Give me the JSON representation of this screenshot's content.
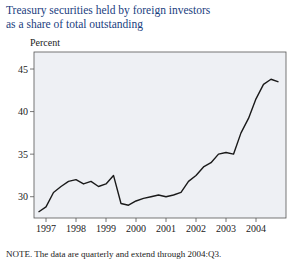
{
  "chart_data": {
    "type": "line",
    "title": "Treasury securities held by foreign investors",
    "subtitle": "as a share of total outstanding",
    "y_label": "Percent",
    "annotations": [
      "NOTE.  The data are quarterly and extend through 2004:Q3."
    ],
    "color": "#1a1a1a",
    "grid": false,
    "xlim": [
      1996.6,
      2005.0
    ],
    "xticks": [
      1997,
      1998,
      1999,
      2000,
      2001,
      2002,
      2003,
      2004
    ],
    "ylim": [
      27.5,
      47.0
    ],
    "yticks": [
      30,
      35,
      40,
      45
    ],
    "x": [
      1996.75,
      1997.0,
      1997.25,
      1997.5,
      1997.75,
      1998.0,
      1998.25,
      1998.5,
      1998.75,
      1999.0,
      1999.25,
      1999.5,
      1999.75,
      2000.0,
      2000.25,
      2000.5,
      2000.75,
      2001.0,
      2001.25,
      2001.5,
      2001.75,
      2002.0,
      2002.25,
      2002.5,
      2002.75,
      2003.0,
      2003.25,
      2003.5,
      2003.75,
      2004.0,
      2004.25,
      2004.5,
      2004.75
    ],
    "values": [
      28.2,
      28.8,
      30.5,
      31.2,
      31.8,
      32.0,
      31.5,
      31.8,
      31.2,
      31.5,
      32.5,
      29.2,
      29.0,
      29.5,
      29.8,
      30.0,
      30.2,
      30.0,
      30.2,
      30.5,
      31.8,
      32.5,
      33.5,
      34.0,
      35.0,
      35.2,
      35.0,
      37.5,
      39.2,
      41.5,
      43.2,
      43.8,
      43.5
    ]
  }
}
